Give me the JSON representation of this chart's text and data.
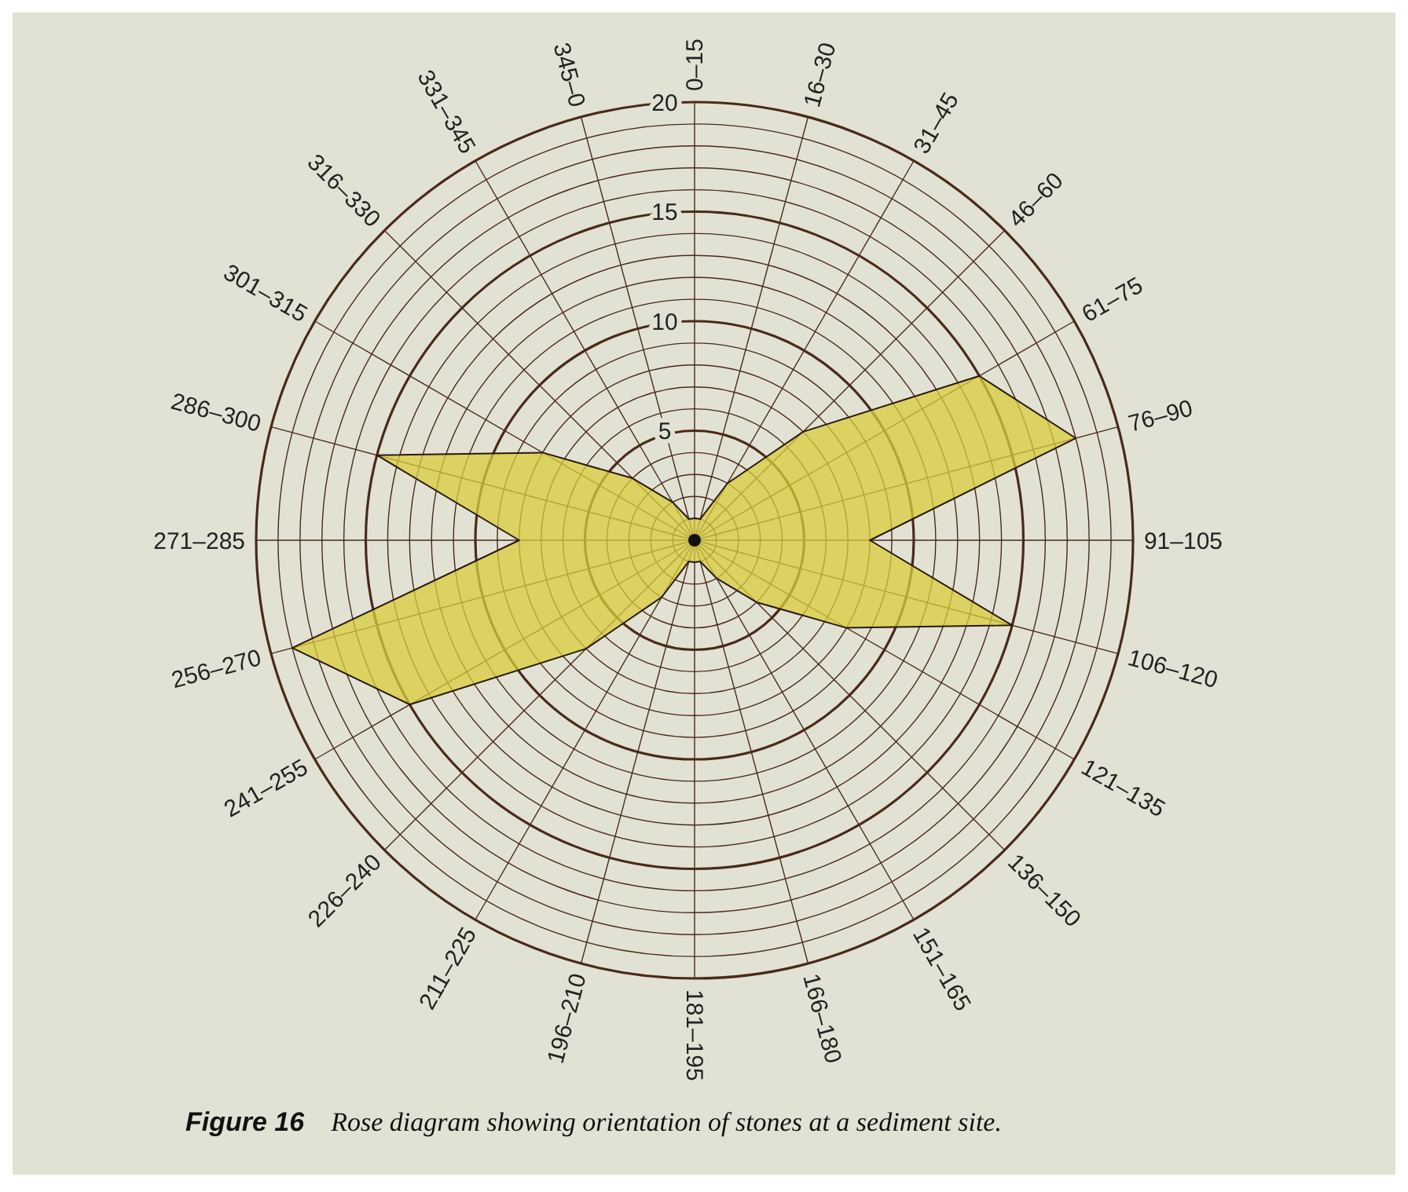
{
  "chart_data": {
    "type": "radar",
    "title": "Figure 16    Rose diagram showing orientation of stones at a sediment site.",
    "categories": [
      "0–15",
      "16–30",
      "31–45",
      "46–60",
      "61–75",
      "76–90",
      "91–105",
      "106–120",
      "121–135",
      "136–150",
      "151–165",
      "166–180",
      "181–195",
      "196–210",
      "211–225",
      "226–240",
      "241–255",
      "256–270",
      "271–285",
      "286–300",
      "301–315",
      "316–330",
      "331–345",
      "345–0"
    ],
    "series": [
      {
        "color": "#d8cc3c",
        "values": [
          1,
          1,
          3,
          7,
          15,
          18,
          8,
          15,
          8,
          4,
          2,
          1,
          1,
          1,
          3,
          7,
          15,
          19,
          8,
          15,
          8,
          4,
          2,
          1
        ]
      }
    ],
    "ylim": [
      0,
      20
    ],
    "yticks": [
      5,
      10,
      15,
      20
    ],
    "grid": true
  }
}
